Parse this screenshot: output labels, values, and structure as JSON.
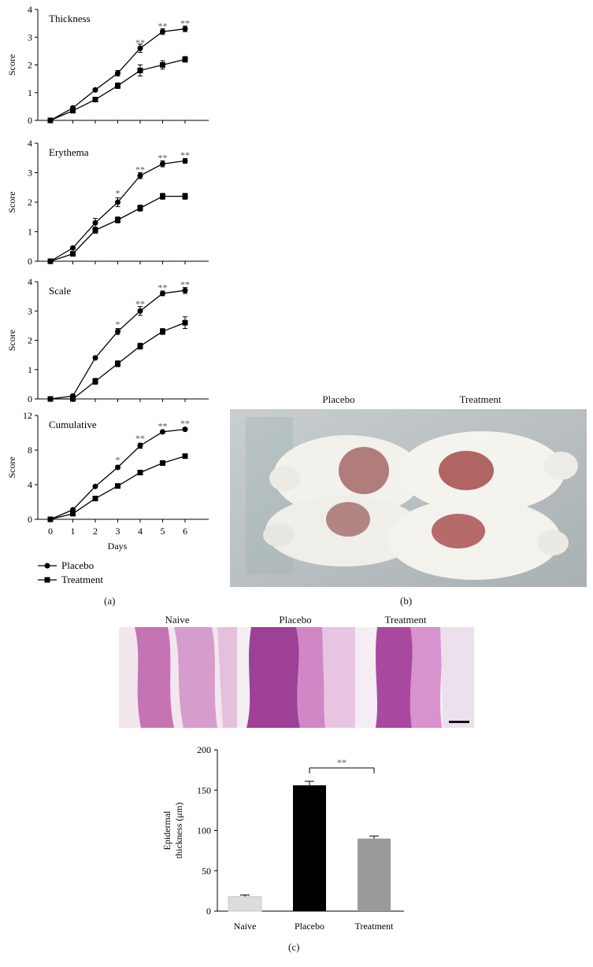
{
  "chart_data": [
    {
      "type": "line",
      "title": "Thickness",
      "ylabel": "Score",
      "ylim": [
        0,
        4
      ],
      "yticks": [
        0,
        1,
        2,
        3,
        4
      ],
      "x": [
        0,
        1,
        2,
        3,
        4,
        5,
        6
      ],
      "series": [
        {
          "name": "Placebo",
          "marker": "circle",
          "values": [
            0,
            0.45,
            1.1,
            1.7,
            2.6,
            3.2,
            3.3
          ],
          "err": [
            0.02,
            0.05,
            0.05,
            0.1,
            0.15,
            0.1,
            0.1
          ]
        },
        {
          "name": "Treatment",
          "marker": "square",
          "values": [
            0,
            0.35,
            0.75,
            1.25,
            1.8,
            2.0,
            2.2
          ],
          "err": [
            0.02,
            0.05,
            0.05,
            0.1,
            0.2,
            0.15,
            0.1
          ]
        }
      ],
      "annotations": [
        {
          "x": 4,
          "y": 2.75,
          "text": "**"
        },
        {
          "x": 5,
          "y": 3.35,
          "text": "**"
        },
        {
          "x": 6,
          "y": 3.45,
          "text": "**"
        }
      ]
    },
    {
      "type": "line",
      "title": "Erythema",
      "ylabel": "Score",
      "ylim": [
        0,
        4
      ],
      "yticks": [
        0,
        1,
        2,
        3,
        4
      ],
      "x": [
        0,
        1,
        2,
        3,
        4,
        5,
        6
      ],
      "series": [
        {
          "name": "Placebo",
          "marker": "circle",
          "values": [
            0,
            0.45,
            1.3,
            2.0,
            2.9,
            3.3,
            3.4
          ],
          "err": [
            0.02,
            0.05,
            0.15,
            0.15,
            0.1,
            0.1,
            0.08
          ]
        },
        {
          "name": "Treatment",
          "marker": "square",
          "values": [
            0,
            0.25,
            1.05,
            1.4,
            1.8,
            2.2,
            2.2
          ],
          "err": [
            0.02,
            0.05,
            0.1,
            0.1,
            0.1,
            0.1,
            0.1
          ]
        }
      ],
      "annotations": [
        {
          "x": 3,
          "y": 2.25,
          "text": "*"
        },
        {
          "x": 4,
          "y": 3.05,
          "text": "**"
        },
        {
          "x": 5,
          "y": 3.45,
          "text": "**"
        },
        {
          "x": 6,
          "y": 3.55,
          "text": "**"
        }
      ]
    },
    {
      "type": "line",
      "title": "Scale",
      "ylabel": "Score",
      "ylim": [
        0,
        4
      ],
      "yticks": [
        0,
        1,
        2,
        3,
        4
      ],
      "x": [
        0,
        1,
        2,
        3,
        4,
        5,
        6
      ],
      "series": [
        {
          "name": "Placebo",
          "marker": "circle",
          "values": [
            0,
            0.1,
            1.4,
            2.3,
            3.0,
            3.6,
            3.7
          ],
          "err": [
            0.02,
            0.05,
            0.05,
            0.1,
            0.15,
            0.08,
            0.1
          ]
        },
        {
          "name": "Treatment",
          "marker": "square",
          "values": [
            0,
            0,
            0.6,
            1.2,
            1.8,
            2.3,
            2.6
          ],
          "err": [
            0.02,
            0.02,
            0.1,
            0.1,
            0.1,
            0.1,
            0.2
          ]
        }
      ],
      "annotations": [
        {
          "x": 3,
          "y": 2.5,
          "text": "*"
        },
        {
          "x": 4,
          "y": 3.2,
          "text": "**"
        },
        {
          "x": 5,
          "y": 3.75,
          "text": "**"
        },
        {
          "x": 6,
          "y": 3.85,
          "text": "**"
        }
      ]
    },
    {
      "type": "line",
      "title": "Cumulative",
      "ylabel": "Score",
      "xlabel": "Days",
      "ylim": [
        0,
        12
      ],
      "yticks": [
        0,
        4,
        8,
        12
      ],
      "x": [
        0,
        1,
        2,
        3,
        4,
        5,
        6
      ],
      "xticks": [
        0,
        1,
        2,
        3,
        4,
        5,
        6
      ],
      "series": [
        {
          "name": "Placebo",
          "marker": "circle",
          "values": [
            0,
            1.1,
            3.8,
            6.0,
            8.5,
            10.1,
            10.4
          ],
          "err": [
            0.05,
            0.1,
            0.1,
            0.2,
            0.3,
            0.15,
            0.15
          ]
        },
        {
          "name": "Treatment",
          "marker": "square",
          "values": [
            0,
            0.65,
            2.4,
            3.85,
            5.4,
            6.5,
            7.3
          ],
          "err": [
            0.05,
            0.1,
            0.1,
            0.15,
            0.2,
            0.15,
            0.15
          ]
        }
      ],
      "annotations": [
        {
          "x": 3,
          "y": 6.7,
          "text": "*"
        },
        {
          "x": 4,
          "y": 9.2,
          "text": "**"
        },
        {
          "x": 5,
          "y": 10.6,
          "text": "**"
        },
        {
          "x": 6,
          "y": 10.9,
          "text": "**"
        }
      ]
    },
    {
      "type": "bar",
      "ylabel": "Epidermal thickness (μm)",
      "ylabel_lines": [
        "Epidermal",
        "thickness (μm)"
      ],
      "ylim": [
        0,
        200
      ],
      "yticks": [
        0,
        50,
        100,
        150,
        200
      ],
      "categories": [
        "Naive",
        "Placebo",
        "Treatment"
      ],
      "values": [
        18,
        156,
        90
      ],
      "err": [
        2,
        5,
        3
      ],
      "colors": [
        "#dcdcdc",
        "#000000",
        "#9a9a9a"
      ],
      "bracket": {
        "from": "Placebo",
        "to": "Treatment",
        "text": "**"
      }
    }
  ],
  "legend": {
    "items": [
      {
        "label": "Placebo",
        "marker": "circle"
      },
      {
        "label": "Treatment",
        "marker": "square"
      }
    ]
  },
  "panels": {
    "a": "(a)",
    "b": "(b)",
    "c": "(c)"
  },
  "photo_b": {
    "labels": [
      "Placebo",
      "Treatment"
    ]
  },
  "histology": {
    "labels": [
      "Naive",
      "Placebo",
      "Treatment"
    ]
  }
}
